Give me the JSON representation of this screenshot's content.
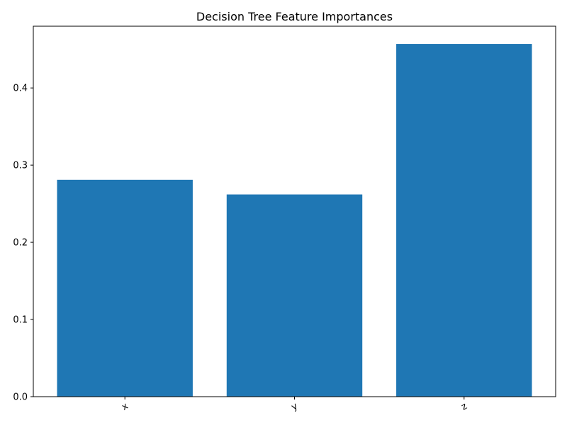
{
  "chart_data": {
    "type": "bar",
    "title": "Decision Tree Feature Importances",
    "xlabel": "",
    "ylabel": "",
    "categories": [
      "x",
      "y",
      "z"
    ],
    "values": [
      0.281,
      0.262,
      0.457
    ],
    "ylim": [
      0,
      0.48
    ],
    "yticks": [
      0.0,
      0.1,
      0.2,
      0.3,
      0.4
    ],
    "ytick_labels": [
      "0.0",
      "0.1",
      "0.2",
      "0.3",
      "0.4"
    ],
    "xtick_rotation": "rotated about 30 degrees",
    "bar_color": "#1f77b4",
    "grid": false,
    "legend": "none"
  }
}
